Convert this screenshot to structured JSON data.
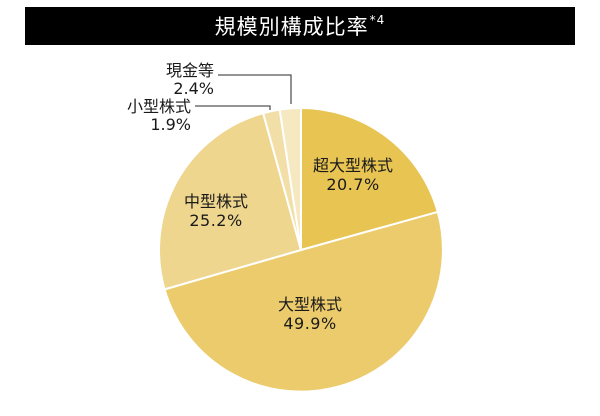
{
  "title": {
    "main": "規模別構成比率",
    "sup": "*4"
  },
  "chart_data": {
    "type": "pie",
    "title": "規模別構成比率*4",
    "start_angle": "12 o'clock, clockwise",
    "categories": [
      "超大型株式",
      "大型株式",
      "中型株式",
      "小型株式",
      "現金等"
    ],
    "values": [
      20.7,
      49.9,
      25.2,
      1.9,
      2.4
    ],
    "labels": [
      "20.7%",
      "49.9%",
      "25.2%",
      "1.9%",
      "2.4%"
    ],
    "colors": [
      "#E8C452",
      "#EBCB6C",
      "#EFD68E",
      "#F2DFA8",
      "#F6E8C0"
    ],
    "legend": "none (direct labels; 小型株式 and 現金等 with leader lines)"
  },
  "slices": [
    {
      "name": "超大型株式",
      "pct": "20.7%"
    },
    {
      "name": "大型株式",
      "pct": "49.9%"
    },
    {
      "name": "中型株式",
      "pct": "25.2%"
    },
    {
      "name": "小型株式",
      "pct": "1.9%"
    },
    {
      "name": "現金等",
      "pct": "2.4%"
    }
  ]
}
